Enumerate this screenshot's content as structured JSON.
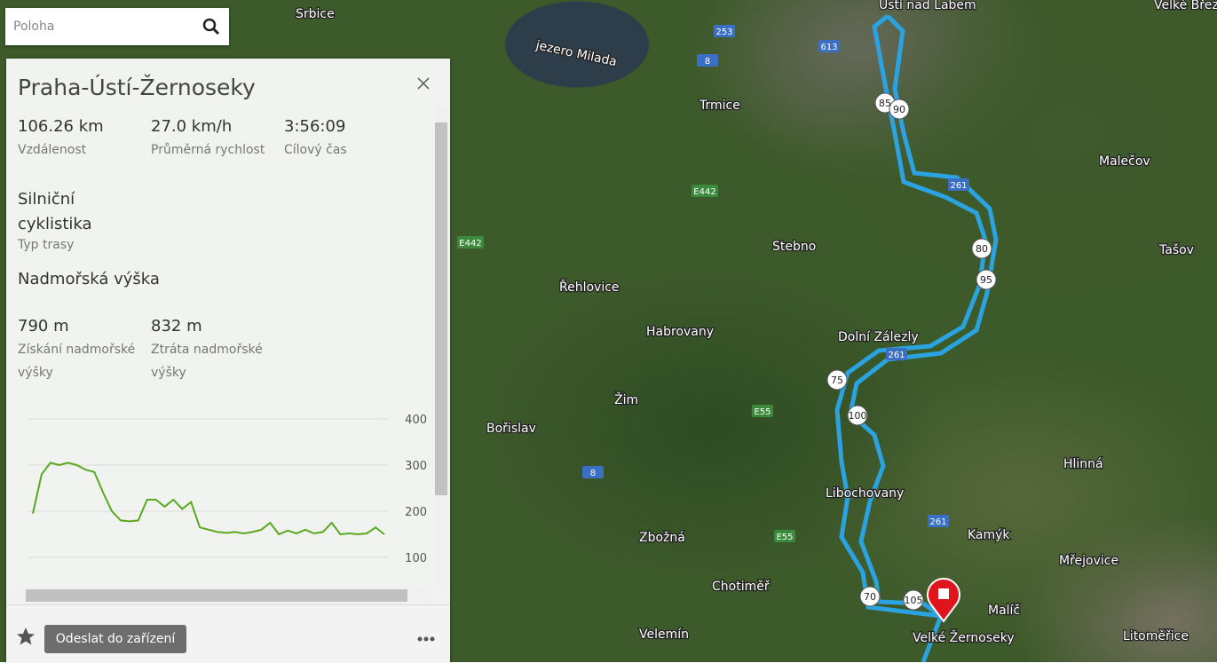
{
  "search": {
    "placeholder": "Poloha"
  },
  "panel": {
    "title": "Praha-Ústí-Žernoseky",
    "stats": [
      {
        "value": "106.26 km",
        "label": "Vzdálenost"
      },
      {
        "value": "27.0 km/h",
        "label": "Průměrná rychlost"
      },
      {
        "value": "3:56:09",
        "label": "Cílový čas"
      }
    ],
    "route_type": {
      "value": "Silniční cyklistika",
      "label": "Typ trasy"
    },
    "elevation_heading": "Nadmořská výška",
    "elevation_stats": [
      {
        "value": "790 m",
        "label": "Získání nadmořské výšky"
      },
      {
        "value": "832 m",
        "label": "Ztráta nadmořské výšky"
      }
    ],
    "elevation_chart": {
      "type": "line",
      "color": "#5aa820",
      "ylim": [
        100,
        400
      ],
      "yticks": [
        100,
        200,
        300,
        400
      ],
      "grid": true,
      "values": [
        195,
        280,
        305,
        300,
        305,
        300,
        290,
        285,
        240,
        200,
        180,
        178,
        180,
        225,
        225,
        210,
        225,
        205,
        220,
        165,
        160,
        155,
        153,
        155,
        152,
        155,
        160,
        175,
        150,
        158,
        152,
        160,
        152,
        155,
        175,
        150,
        152,
        150,
        152,
        165,
        150
      ]
    },
    "send_button": "Odeslat do zařízení"
  },
  "map": {
    "places": [
      "Srbice",
      "Ústí nad Labem",
      "jezero Milada",
      "Trmice",
      "Malečov",
      "Stebno",
      "Tašov",
      "Řehlovice",
      "Habrovany",
      "Dolní Zálezly",
      "Žim",
      "Bořislav",
      "Hlinná",
      "Libochovany",
      "Zbožná",
      "Kamýk",
      "Mřejovice",
      "Chotiměř",
      "Malíč",
      "Velemín",
      "Velké Žernoseky",
      "Litoměřice",
      "Velké Březno"
    ],
    "roads": [
      "253",
      "613",
      "8",
      "E442",
      "E442",
      "E55",
      "E55",
      "8",
      "261",
      "261",
      "261"
    ],
    "km_markers": [
      "85",
      "90",
      "80",
      "95",
      "75",
      "100",
      "70",
      "105"
    ]
  }
}
